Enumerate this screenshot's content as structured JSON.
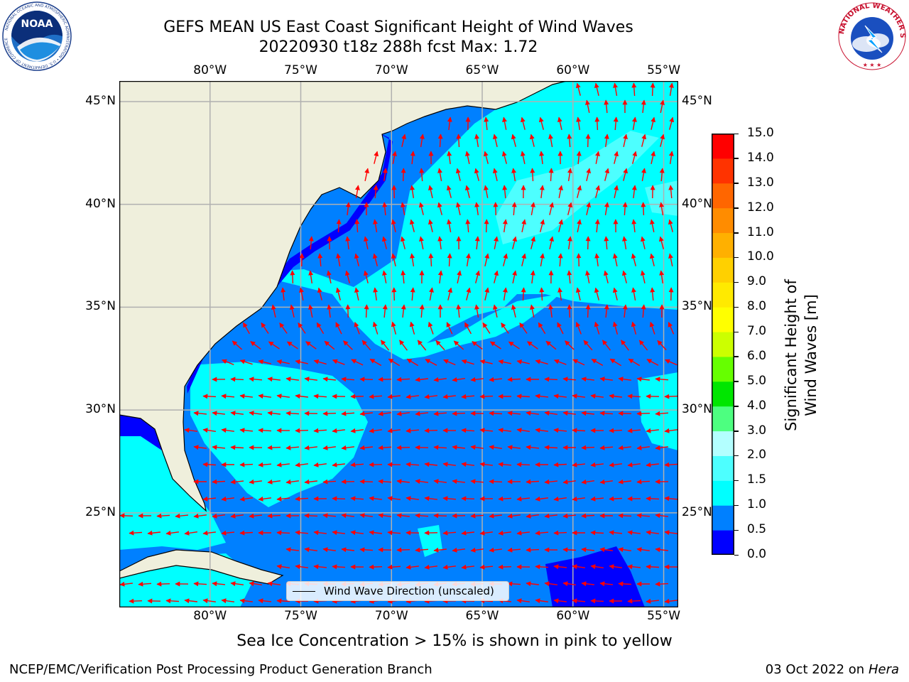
{
  "title": {
    "line1": "GEFS MEAN US East Coast Significant Height of Wind Waves",
    "line2": "20220930 t18z 288h fcst   Max: 1.72"
  },
  "map": {
    "lon_ticks_top": [
      "80°W",
      "75°W",
      "70°W",
      "65°W",
      "60°W",
      "55°W"
    ],
    "lon_ticks_bottom": [
      "80°W",
      "75°W",
      "70°W",
      "65°W",
      "60°W",
      "55°W"
    ],
    "lat_ticks_left": [
      "45°N",
      "40°N",
      "35°N",
      "30°N",
      "25°N"
    ],
    "lat_ticks_right": [
      "45°N",
      "40°N",
      "35°N",
      "30°N",
      "25°N"
    ],
    "lon_range": [
      -85,
      -54.2
    ],
    "lat_range": [
      20.4,
      46.0
    ],
    "legend_label": "Wind Wave Direction (unscaled)",
    "land_color": "#efefdc",
    "arrow_color": "#ff0000"
  },
  "colorbar": {
    "title": "Significant Height of Wind Waves [m]",
    "tick_labels": [
      "0.0",
      "0.5",
      "1.0",
      "1.5",
      "2.0",
      "3.0",
      "4.0",
      "5.0",
      "6.0",
      "7.0",
      "8.0",
      "9.0",
      "10.0",
      "11.0",
      "12.0",
      "13.0",
      "14.0",
      "15.0"
    ],
    "colors": [
      "#0000ff",
      "#0080ff",
      "#00ffff",
      "#4dffff",
      "#b3ffff",
      "#4dff80",
      "#00e600",
      "#66ff00",
      "#ccff00",
      "#ffff00",
      "#ffea00",
      "#ffd000",
      "#ffb000",
      "#ff8c00",
      "#ff6600",
      "#ff3300",
      "#ff0000"
    ]
  },
  "logos": {
    "left_text": "NOAA",
    "left_ring_text": "NATIONAL OCEANIC AND ATMOSPHERIC ADMINISTRATION • U.S. DEPARTMENT OF COMMERCE",
    "right_ring_text": "NATIONAL WEATHER SERVICE"
  },
  "footer": {
    "note": "Sea Ice Concentration > 15% is shown in pink to yellow",
    "left": "NCEP/EMC/Verification Post Processing Product Generation Branch",
    "right_date": "03 Oct 2022 on ",
    "right_machine": "Hera"
  }
}
